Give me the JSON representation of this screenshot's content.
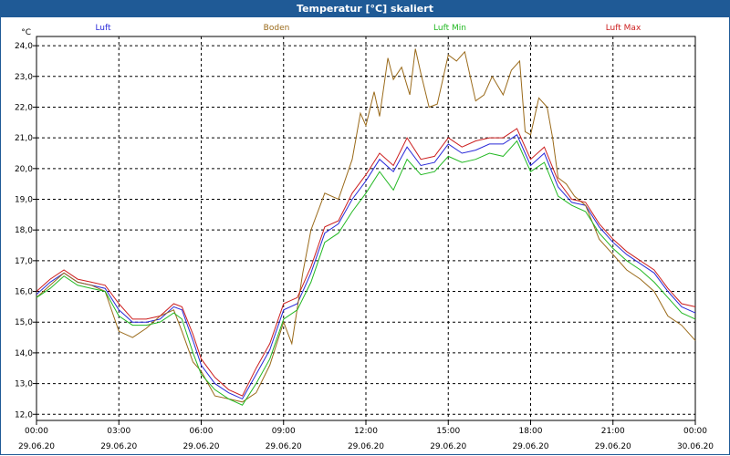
{
  "window": {
    "title": "Temperatur [°C] skaliert"
  },
  "colors": {
    "Luft": "#2a2ad8",
    "Boden": "#9a6a1a",
    "Luft Min": "#22b822",
    "Luft Max": "#cc1f1f"
  },
  "chart_data": {
    "type": "line",
    "title": "Temperatur [°C] skaliert",
    "ylabel": "°C",
    "ylim": [
      11.8,
      24.3
    ],
    "xlim": [
      0,
      24
    ],
    "grid": true,
    "legend": "top",
    "y_ticks": [
      12,
      13,
      14,
      15,
      16,
      17,
      18,
      19,
      20,
      21,
      22,
      23,
      24
    ],
    "y_tick_labels": [
      "12,0",
      "13,0",
      "14,0",
      "15,0",
      "16,0",
      "17,0",
      "18,0",
      "19,0",
      "20,0",
      "21,0",
      "22,0",
      "23,0",
      "24,0"
    ],
    "x_ticks": [
      0,
      3,
      6,
      9,
      12,
      15,
      18,
      21,
      24
    ],
    "x_tick_labels": [
      {
        "time": "00:00",
        "date": "29.06.20"
      },
      {
        "time": "03:00",
        "date": "29.06.20"
      },
      {
        "time": "06:00",
        "date": "29.06.20"
      },
      {
        "time": "09:00",
        "date": "29.06.20"
      },
      {
        "time": "12:00",
        "date": "29.06.20"
      },
      {
        "time": "15:00",
        "date": "29.06.20"
      },
      {
        "time": "18:00",
        "date": "29.06.20"
      },
      {
        "time": "21:00",
        "date": "29.06.20"
      },
      {
        "time": "00:00",
        "date": "30.06.20"
      }
    ],
    "series": [
      {
        "name": "Luft",
        "x": [
          0,
          0.5,
          1,
          1.5,
          2,
          2.5,
          3,
          3.5,
          4,
          4.5,
          5,
          5.3,
          5.7,
          6,
          6.5,
          7,
          7.5,
          8,
          8.5,
          9,
          9.5,
          10,
          10.5,
          11,
          11.5,
          12,
          12.5,
          13,
          13.5,
          14,
          14.5,
          15,
          15.5,
          16,
          16.5,
          17,
          17.5,
          18,
          18.5,
          19,
          19.5,
          20,
          20.5,
          21,
          21.5,
          22,
          22.5,
          23,
          23.5,
          24
        ],
        "values": [
          15.9,
          16.3,
          16.6,
          16.3,
          16.2,
          16.1,
          15.4,
          15.0,
          15.0,
          15.1,
          15.5,
          15.4,
          14.4,
          13.6,
          13.0,
          12.7,
          12.5,
          13.3,
          14.1,
          15.4,
          15.6,
          16.6,
          17.9,
          18.2,
          19.0,
          19.6,
          20.3,
          19.9,
          20.7,
          20.1,
          20.2,
          20.8,
          20.5,
          20.6,
          20.8,
          20.8,
          21.1,
          20.1,
          20.5,
          19.4,
          18.9,
          18.8,
          18.1,
          17.6,
          17.2,
          16.9,
          16.6,
          16.0,
          15.5,
          15.3
        ]
      },
      {
        "name": "Boden",
        "x": [
          0,
          0.5,
          1,
          1.5,
          2,
          2.5,
          3,
          3.5,
          4,
          4.5,
          5,
          5.3,
          5.7,
          6,
          6.5,
          7,
          7.5,
          8,
          8.5,
          9,
          9.3,
          9.7,
          10,
          10.5,
          11,
          11.5,
          11.8,
          12,
          12.3,
          12.5,
          12.8,
          13,
          13.3,
          13.6,
          13.8,
          14,
          14.3,
          14.6,
          15,
          15.3,
          15.6,
          16,
          16.3,
          16.6,
          17,
          17.3,
          17.6,
          17.8,
          18,
          18.3,
          18.6,
          18.8,
          19,
          19.3,
          19.6,
          20,
          20.5,
          21,
          21.5,
          22,
          22.5,
          23,
          23.5,
          24
        ],
        "values": [
          15.8,
          16.2,
          16.6,
          16.3,
          16.2,
          16.0,
          14.7,
          14.5,
          14.8,
          15.2,
          15.4,
          14.7,
          13.7,
          13.4,
          12.6,
          12.5,
          12.4,
          12.7,
          13.6,
          15.0,
          14.3,
          16.6,
          18.0,
          19.2,
          19.0,
          20.3,
          21.8,
          21.4,
          22.5,
          21.7,
          23.6,
          22.9,
          23.3,
          22.4,
          23.9,
          23.1,
          22.0,
          22.1,
          23.7,
          23.5,
          23.8,
          22.2,
          22.4,
          23.0,
          22.4,
          23.2,
          23.5,
          21.2,
          21.1,
          22.3,
          22.0,
          21.0,
          19.7,
          19.5,
          19.1,
          18.8,
          17.7,
          17.2,
          16.7,
          16.4,
          16.0,
          15.2,
          14.9,
          14.4
        ]
      },
      {
        "name": "Luft Min",
        "x": [
          0,
          0.5,
          1,
          1.5,
          2,
          2.5,
          3,
          3.5,
          4,
          4.5,
          5,
          5.3,
          5.7,
          6,
          6.5,
          7,
          7.5,
          8,
          8.5,
          9,
          9.5,
          10,
          10.5,
          11,
          11.5,
          12,
          12.5,
          13,
          13.5,
          14,
          14.5,
          15,
          15.5,
          16,
          16.5,
          17,
          17.5,
          18,
          18.5,
          19,
          19.5,
          20,
          20.5,
          21,
          21.5,
          22,
          22.5,
          23,
          23.5,
          24
        ],
        "values": [
          15.8,
          16.1,
          16.5,
          16.2,
          16.1,
          16.0,
          15.2,
          14.9,
          14.9,
          15.0,
          15.3,
          15.1,
          14.0,
          13.3,
          12.8,
          12.5,
          12.3,
          13.0,
          13.8,
          15.1,
          15.4,
          16.3,
          17.6,
          17.9,
          18.6,
          19.2,
          19.9,
          19.3,
          20.3,
          19.8,
          19.9,
          20.4,
          20.2,
          20.3,
          20.5,
          20.4,
          20.9,
          19.9,
          20.2,
          19.1,
          18.8,
          18.6,
          17.9,
          17.4,
          17.0,
          16.7,
          16.3,
          15.8,
          15.3,
          15.1
        ]
      },
      {
        "name": "Luft Max",
        "x": [
          0,
          0.5,
          1,
          1.5,
          2,
          2.5,
          3,
          3.5,
          4,
          4.5,
          5,
          5.3,
          5.7,
          6,
          6.5,
          7,
          7.5,
          8,
          8.5,
          9,
          9.5,
          10,
          10.5,
          11,
          11.5,
          12,
          12.5,
          13,
          13.5,
          14,
          14.5,
          15,
          15.5,
          16,
          16.5,
          17,
          17.5,
          18,
          18.5,
          19,
          19.5,
          20,
          20.5,
          21,
          21.5,
          22,
          22.5,
          23,
          23.5,
          24
        ],
        "values": [
          16.0,
          16.4,
          16.7,
          16.4,
          16.3,
          16.2,
          15.6,
          15.1,
          15.1,
          15.2,
          15.6,
          15.5,
          14.6,
          13.8,
          13.2,
          12.8,
          12.6,
          13.5,
          14.3,
          15.6,
          15.8,
          16.8,
          18.1,
          18.3,
          19.2,
          19.8,
          20.5,
          20.1,
          21.0,
          20.3,
          20.4,
          21.0,
          20.7,
          20.9,
          21.0,
          21.0,
          21.3,
          20.3,
          20.7,
          19.6,
          19.0,
          18.9,
          18.2,
          17.7,
          17.3,
          17.0,
          16.7,
          16.1,
          15.6,
          15.5
        ]
      }
    ]
  }
}
